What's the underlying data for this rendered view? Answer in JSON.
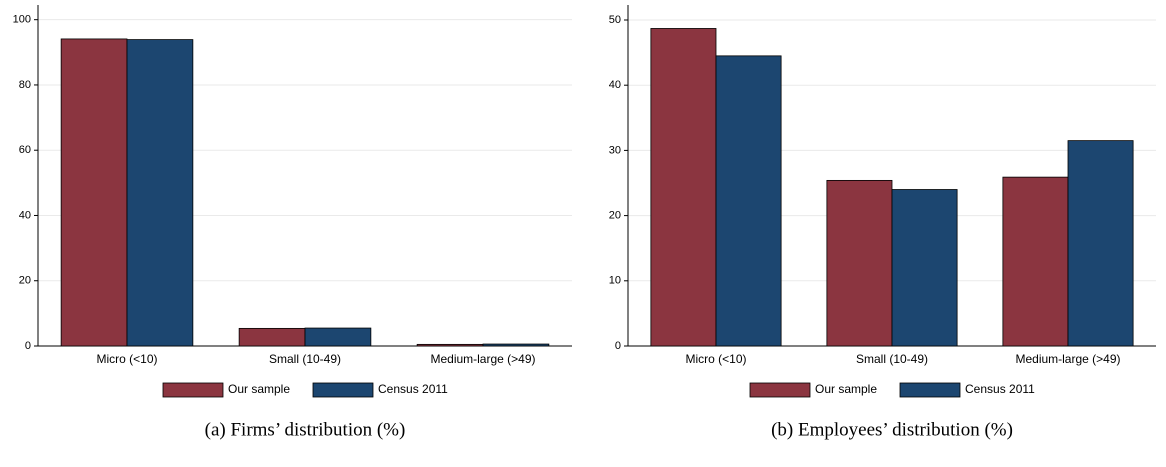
{
  "chart_data": [
    {
      "type": "bar",
      "title": "(a)  Firms’ distribution (%)",
      "categories": [
        "Micro (<10)",
        "Small (10-49)",
        "Medium-large (>49)"
      ],
      "series": [
        {
          "name": "Our sample",
          "color": "#8b3540",
          "values": [
            94.1,
            5.4,
            0.5
          ]
        },
        {
          "name": "Census 2011",
          "color": "#1c4670",
          "values": [
            93.9,
            5.5,
            0.6
          ]
        }
      ],
      "ylim": [
        0,
        104.5
      ],
      "yticks": [
        0,
        20,
        40,
        60,
        80,
        100
      ],
      "grid": true
    },
    {
      "type": "bar",
      "title": "(b)  Employees’ distribution (%)",
      "categories": [
        "Micro (<10)",
        "Small (10-49)",
        "Medium-large (>49)"
      ],
      "series": [
        {
          "name": "Our sample",
          "color": "#8b3540",
          "values": [
            48.7,
            25.4,
            25.9
          ]
        },
        {
          "name": "Census 2011",
          "color": "#1c4670",
          "values": [
            44.5,
            24.0,
            31.5
          ]
        }
      ],
      "ylim": [
        0,
        52.3
      ],
      "yticks": [
        0,
        10,
        20,
        30,
        40,
        50
      ],
      "grid": true
    }
  ]
}
